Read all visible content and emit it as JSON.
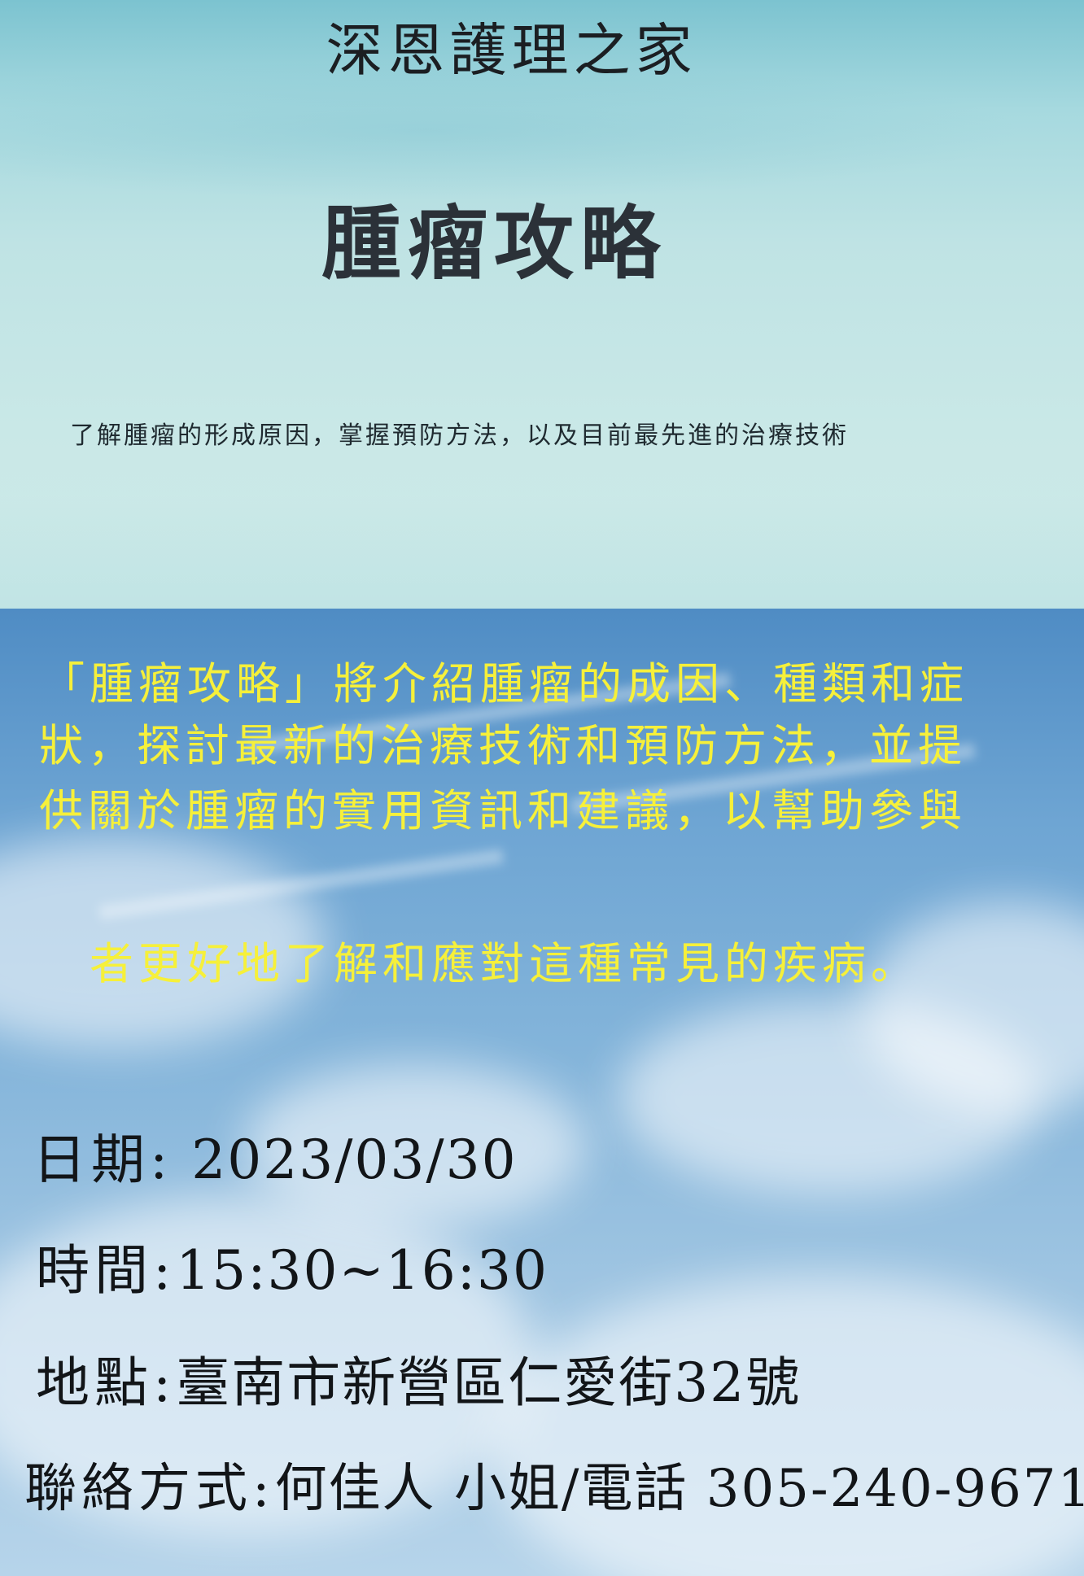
{
  "header": {
    "organization": "深恩護理之家",
    "title": "腫瘤攻略",
    "subtitle": "了解腫瘤的形成原因，掌握預防方法，以及目前最先進的治療技術"
  },
  "description": {
    "line1": "「腫瘤攻略」將介紹腫瘤的成因、種類和症",
    "line2": "狀，探討最新的治療技術和預防方法，並提",
    "line3": "供關於腫瘤的實用資訊和建議，以幫助參與",
    "line4": "者更好地了解和應對這種常見的疾病。"
  },
  "event": {
    "date_label": "日期:",
    "date_value": " 2023/03/30",
    "time_label": "時間:",
    "time_value": "15:30~16:30",
    "place_label": "地點:",
    "place_value": "臺南市新營區仁愛街32號",
    "contact_label": "聯絡方式:",
    "contact_value": "何佳人 小姐/電話 305-240-9671"
  },
  "colors": {
    "description_text": "#f6f03a",
    "top_background": "#c9e8e7",
    "sky_background": "#6ea5d3"
  }
}
